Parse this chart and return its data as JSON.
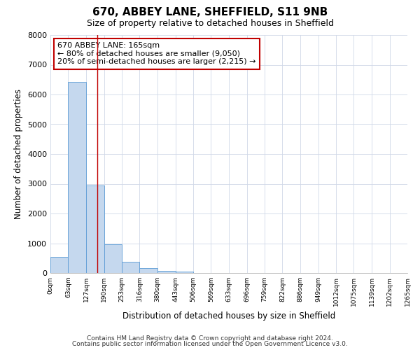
{
  "title": "670, ABBEY LANE, SHEFFIELD, S11 9NB",
  "subtitle": "Size of property relative to detached houses in Sheffield",
  "xlabel": "Distribution of detached houses by size in Sheffield",
  "ylabel": "Number of detached properties",
  "property_size": 165,
  "bin_edges": [
    0,
    63,
    127,
    190,
    253,
    316,
    380,
    443,
    506,
    569,
    633,
    696,
    759,
    822,
    886,
    949,
    1012,
    1075,
    1139,
    1202,
    1265
  ],
  "bar_heights": [
    550,
    6430,
    2930,
    970,
    370,
    160,
    80,
    50,
    0,
    0,
    0,
    0,
    0,
    0,
    0,
    0,
    0,
    0,
    0,
    0
  ],
  "bar_color": "#c5d8ee",
  "bar_edge_color": "#5b9bd5",
  "vline_color": "#c00000",
  "vline_x": 165,
  "annotation_box_color": "#c00000",
  "annotation_text_line1": "670 ABBEY LANE: 165sqm",
  "annotation_text_line2": "← 80% of detached houses are smaller (9,050)",
  "annotation_text_line3": "20% of semi-detached houses are larger (2,215) →",
  "ylim": [
    0,
    8000
  ],
  "yticks": [
    0,
    1000,
    2000,
    3000,
    4000,
    5000,
    6000,
    7000,
    8000
  ],
  "tick_labels": [
    "0sqm",
    "63sqm",
    "127sqm",
    "190sqm",
    "253sqm",
    "316sqm",
    "380sqm",
    "443sqm",
    "506sqm",
    "569sqm",
    "633sqm",
    "696sqm",
    "759sqm",
    "822sqm",
    "886sqm",
    "949sqm",
    "1012sqm",
    "1075sqm",
    "1139sqm",
    "1202sqm",
    "1265sqm"
  ],
  "footer_line1": "Contains HM Land Registry data © Crown copyright and database right 2024.",
  "footer_line2": "Contains public sector information licensed under the Open Government Licence v3.0.",
  "fig_background": "#ffffff",
  "ax_background": "#ffffff",
  "grid_color": "#d0d8e8"
}
